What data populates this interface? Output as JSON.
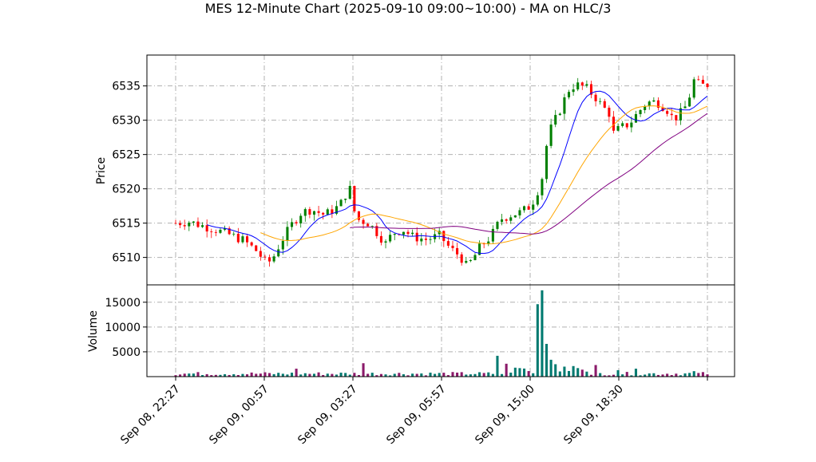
{
  "chart_data": {
    "type": "candlestick",
    "title": "MES 12-Minute Chart (2025-09-10 09:00~10:00) - MA on HLC/3",
    "price_panel": {
      "ylabel": "Price",
      "yticks": [
        6510,
        6515,
        6520,
        6525,
        6530,
        6535
      ],
      "ylim": [
        6506,
        6539.5
      ],
      "grid": true
    },
    "volume_panel": {
      "ylabel": "Volume",
      "yticks": [
        5000,
        10000,
        15000
      ],
      "ylim": [
        0,
        18500
      ],
      "grid": true
    },
    "x_tick_labels": [
      "Sep 08, 22:27",
      "Sep 09, 00:57",
      "Sep 09, 03:27",
      "Sep 09, 05:57",
      "Sep 09, 15:00",
      "Sep 09, 18:30"
    ],
    "bar_count": 120,
    "close_path": [
      [
        0,
        6515.0
      ],
      [
        4,
        6515.2
      ],
      [
        8,
        6514.6
      ],
      [
        12,
        6514.0
      ],
      [
        16,
        6513.3
      ],
      [
        20,
        6512.5
      ],
      [
        24,
        6510.9
      ],
      [
        27,
        6509.0
      ],
      [
        29,
        6510.2
      ],
      [
        31,
        6512.2
      ],
      [
        34,
        6514.6
      ],
      [
        37,
        6516.5
      ],
      [
        40,
        6517.0
      ],
      [
        44,
        6516.2
      ],
      [
        48,
        6517.4
      ],
      [
        50,
        6518.7
      ],
      [
        51,
        6522.0
      ],
      [
        52,
        6517.5
      ],
      [
        54,
        6515.5
      ],
      [
        57,
        6515.0
      ],
      [
        60,
        6513.3
      ],
      [
        62,
        6512.0
      ],
      [
        64,
        6513.5
      ],
      [
        67,
        6514.1
      ],
      [
        70,
        6513.0
      ],
      [
        74,
        6512.6
      ],
      [
        78,
        6513.2
      ],
      [
        81,
        6511.3
      ],
      [
        84,
        6510.2
      ],
      [
        86,
        6508.6
      ],
      [
        88,
        6510.0
      ],
      [
        90,
        6511.6
      ],
      [
        93,
        6513.0
      ],
      [
        96,
        6515.6
      ],
      [
        99,
        6516.2
      ],
      [
        102,
        6516.6
      ],
      [
        105,
        6517.6
      ],
      [
        108,
        6521.0
      ],
      [
        110,
        6528.0
      ],
      [
        113,
        6531.0
      ],
      [
        116,
        6534.4
      ],
      [
        118,
        6535.2
      ],
      [
        121,
        6534.8
      ],
      [
        124,
        6533.3
      ],
      [
        126,
        6532.0
      ],
      [
        128,
        6531.0
      ],
      [
        129,
        6528.0
      ],
      [
        131,
        6528.8
      ],
      [
        134,
        6529.5
      ],
      [
        136,
        6530.8
      ],
      [
        139,
        6532.6
      ],
      [
        142,
        6532.7
      ],
      [
        145,
        6531.6
      ],
      [
        147,
        6530.1
      ],
      [
        149,
        6531.0
      ],
      [
        151,
        6532.3
      ],
      [
        153,
        6535.8
      ],
      [
        155,
        6535.0
      ],
      [
        157,
        6535.2
      ]
    ],
    "volume_spikes": [
      [
        107,
        14600
      ],
      [
        108,
        17400
      ],
      [
        109,
        6600
      ],
      [
        110,
        3800
      ],
      [
        111,
        3400
      ],
      [
        112,
        2500
      ],
      [
        95,
        4200
      ],
      [
        97,
        2600
      ],
      [
        56,
        2700
      ],
      [
        35,
        1600
      ],
      [
        136,
        1600
      ],
      [
        131,
        1300
      ],
      [
        153,
        1100
      ]
    ],
    "series": [
      {
        "name": "",
        "color": "#0000ff",
        "window": 8
      },
      {
        "name": "",
        "color": "#ffa500",
        "window": 20
      },
      {
        "name": "",
        "color": "#800080",
        "window": 40
      }
    ],
    "up_color": "#008000",
    "down_color": "#ff0000",
    "volume_up_color": "#007a70",
    "volume_down_color": "#8b1a6a"
  }
}
